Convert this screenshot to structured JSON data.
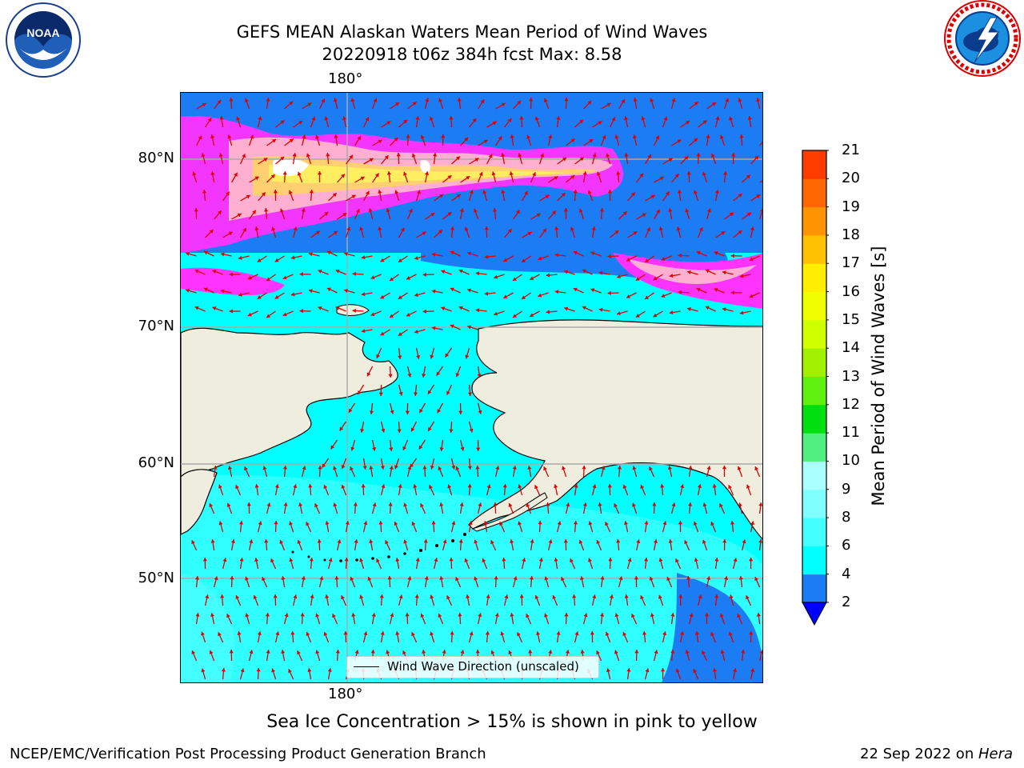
{
  "header": {
    "title_line1": "GEFS MEAN Alaskan Waters Mean Period of Wind Waves",
    "title_line2": "20220918 t06z 384h fcst   Max: 8.58"
  },
  "map": {
    "lat_labels": [
      "80°N",
      "70°N",
      "60°N",
      "50°N"
    ],
    "lon_label_top": "180°",
    "lon_label_bottom": "180°",
    "legend_label": "Wind Wave Direction (unscaled)",
    "arrow_color": "#e00000",
    "land_color": "#efedde",
    "ice_colors": [
      "#ff33ff",
      "#ffb0d0",
      "#ffd070",
      "#ffee60"
    ]
  },
  "colorbar": {
    "label": "Mean Period of Wind Waves [s]",
    "ticks": [
      "2",
      "4",
      "6",
      "8",
      "9",
      "10",
      "11",
      "12",
      "13",
      "14",
      "15",
      "16",
      "17",
      "18",
      "19",
      "20",
      "21"
    ],
    "colors": [
      "#1c7cf4",
      "#00ffff",
      "#44ffff",
      "#80ffff",
      "#aaffff",
      "#50f080",
      "#00e010",
      "#60f010",
      "#a0f000",
      "#d0ff00",
      "#f0ff00",
      "#ffee00",
      "#ffc000",
      "#ff9400",
      "#ff6800",
      "#ff3c00",
      "#ff0000"
    ],
    "under_color": "#0000ff"
  },
  "note": "Sea Ice Concentration > 15% is shown in pink to yellow",
  "footer": {
    "left": "NCEP/EMC/Verification Post Processing Product Generation Branch",
    "right_date": "22 Sep 2022 on ",
    "right_host": "Hera"
  },
  "logos": {
    "noaa_text": "NOAA",
    "nws_ring_text": "NATIONAL WEATHER SERVICE"
  }
}
